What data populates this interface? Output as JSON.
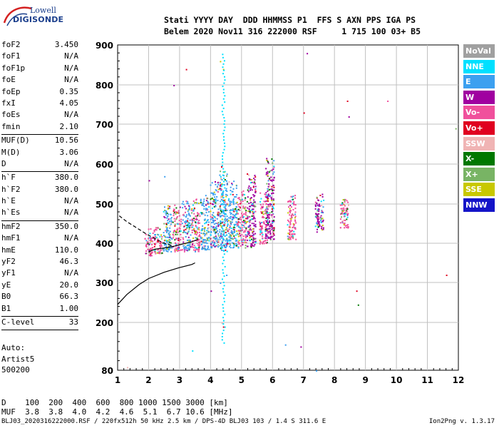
{
  "logo": {
    "line1": "Lowell",
    "line2": "DIGISONDE"
  },
  "header": {
    "line1": "Stati YYYY DAY  DDD HHMMSS P1  FFS S AXN PPS IGA PS",
    "line2": "Belem 2020 Nov11 316 222000 RSF     1 715 100 03+ B5"
  },
  "params": [
    {
      "k": "foF2",
      "v": "3.450"
    },
    {
      "k": "foF1",
      "v": "N/A"
    },
    {
      "k": "foF1p",
      "v": "N/A"
    },
    {
      "k": "foE",
      "v": "N/A"
    },
    {
      "k": "foEp",
      "v": "0.35"
    },
    {
      "k": "fxI",
      "v": "4.05"
    },
    {
      "k": "foEs",
      "v": "N/A"
    },
    {
      "k": "fmin",
      "v": "2.10",
      "sep": true
    },
    {
      "k": "MUF(D)",
      "v": "10.56"
    },
    {
      "k": "M(D)",
      "v": "3.06"
    },
    {
      "k": "D",
      "v": "N/A",
      "sep": true
    },
    {
      "k": "h`F",
      "v": "380.0"
    },
    {
      "k": "h`F2",
      "v": "380.0"
    },
    {
      "k": "h`E",
      "v": "N/A"
    },
    {
      "k": "h`Es",
      "v": "N/A",
      "sep": true
    },
    {
      "k": "hmF2",
      "v": "350.0"
    },
    {
      "k": "hmF1",
      "v": "N/A"
    },
    {
      "k": "hmE",
      "v": "110.0"
    },
    {
      "k": "yF2",
      "v": "46.3"
    },
    {
      "k": "yF1",
      "v": "N/A"
    },
    {
      "k": "yE",
      "v": "20.0"
    },
    {
      "k": "B0",
      "v": "66.3"
    },
    {
      "k": "B1",
      "v": "1.00",
      "sep": true
    },
    {
      "k": "C-level",
      "v": "33",
      "sep": true
    }
  ],
  "auto": "Auto:\nArtist5\n500200",
  "muf_table": "D    100  200  400  600  800 1000 1500 3000 [km]\nMUF  3.8  3.8  4.0  4.2  4.6  5.1  6.7 10.6 [MHz]",
  "footer": "BLJ03_2020316222000.RSF / 220fx512h 50 kHz 2.5 km / DPS-4D BLJ03 103 / 1.4 S 311.6 E",
  "version": "Ion2Png v. 1.3.17",
  "legend": [
    {
      "label": "NoVal",
      "color": "#a0a0a0"
    },
    {
      "label": "NNE",
      "color": "#00e0ff"
    },
    {
      "label": "E",
      "color": "#3ca0f0"
    },
    {
      "label": "W",
      "color": "#a000a0"
    },
    {
      "label": "Vo-",
      "color": "#f0509c"
    },
    {
      "label": "Vo+",
      "color": "#e00020"
    },
    {
      "label": "SSW",
      "color": "#f0b4b4"
    },
    {
      "label": "X-",
      "color": "#007800"
    },
    {
      "label": "X+",
      "color": "#78b464"
    },
    {
      "label": "SSE",
      "color": "#c8c800"
    },
    {
      "label": "NNW",
      "color": "#1414c8"
    }
  ],
  "chart_data": {
    "type": "scatter",
    "x_ticks": [
      1,
      2,
      3,
      4,
      5,
      6,
      7,
      8,
      9,
      10,
      11,
      12
    ],
    "y_ticks": [
      80,
      200,
      300,
      400,
      500,
      600,
      700,
      800,
      900
    ],
    "xlim": [
      1,
      12
    ],
    "ylim": [
      80,
      900
    ],
    "grid": true,
    "profile_solid": [
      [
        1.0,
        245
      ],
      [
        1.3,
        270
      ],
      [
        1.7,
        295
      ],
      [
        2.0,
        310
      ],
      [
        2.5,
        326
      ],
      [
        3.0,
        338
      ],
      [
        3.4,
        346
      ],
      [
        3.5,
        350
      ]
    ],
    "trace_solid": [
      [
        2.0,
        378
      ],
      [
        2.2,
        385
      ],
      [
        2.5,
        388
      ],
      [
        2.8,
        392
      ],
      [
        3.1,
        398
      ],
      [
        3.4,
        404
      ],
      [
        3.6,
        410
      ]
    ],
    "trace_dashed": [
      [
        1.05,
        470
      ],
      [
        1.3,
        455
      ],
      [
        1.6,
        440
      ],
      [
        1.9,
        425
      ],
      [
        2.2,
        412
      ],
      [
        2.5,
        400
      ],
      [
        2.8,
        393
      ]
    ],
    "echo_columns": [
      {
        "x": 2.0,
        "ymin": 370,
        "ymax": 440,
        "dominant": "Vo-"
      },
      {
        "x": 2.3,
        "ymin": 375,
        "ymax": 450,
        "dominant": "Vo-"
      },
      {
        "x": 2.6,
        "ymin": 380,
        "ymax": 500,
        "dominant": "E"
      },
      {
        "x": 2.9,
        "ymin": 380,
        "ymax": 500,
        "dominant": "Vo-"
      },
      {
        "x": 3.2,
        "ymin": 380,
        "ymax": 510,
        "dominant": "E"
      },
      {
        "x": 3.5,
        "ymin": 380,
        "ymax": 520,
        "dominant": "Vo-"
      },
      {
        "x": 3.8,
        "ymin": 385,
        "ymax": 530,
        "dominant": "E"
      },
      {
        "x": 4.1,
        "ymin": 390,
        "ymax": 560,
        "dominant": "E"
      },
      {
        "x": 4.4,
        "ymin": 380,
        "ymax": 600,
        "dominant": "E"
      },
      {
        "x": 4.7,
        "ymin": 390,
        "ymax": 560,
        "dominant": "E"
      },
      {
        "x": 5.0,
        "ymin": 390,
        "ymax": 540,
        "dominant": "Vo-"
      },
      {
        "x": 5.3,
        "ymin": 390,
        "ymax": 580,
        "dominant": "W"
      },
      {
        "x": 5.7,
        "ymin": 400,
        "ymax": 530,
        "dominant": "Vo-"
      },
      {
        "x": 5.9,
        "ymin": 410,
        "ymax": 620,
        "dominant": "W"
      },
      {
        "x": 6.6,
        "ymin": 410,
        "ymax": 530,
        "dominant": "Vo-"
      },
      {
        "x": 7.5,
        "ymin": 430,
        "ymax": 530,
        "dominant": "W"
      },
      {
        "x": 8.3,
        "ymin": 440,
        "ymax": 520,
        "dominant": "Vo-"
      }
    ]
  }
}
